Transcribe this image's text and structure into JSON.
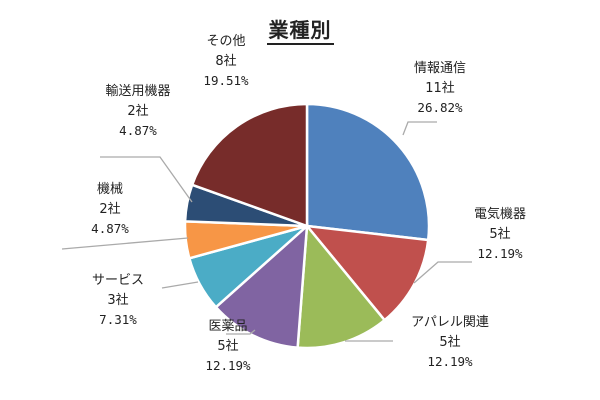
{
  "chart_data": {
    "type": "pie",
    "title": "業種別",
    "slices": [
      {
        "name": "情報通信",
        "count_label": "11社",
        "percent_label": "26.82%",
        "value": 26.82,
        "color": "#4f81bd"
      },
      {
        "name": "電気機器",
        "count_label": "5社",
        "percent_label": "12.19%",
        "value": 12.19,
        "color": "#c0504d"
      },
      {
        "name": "アパレル関連",
        "count_label": "5社",
        "percent_label": "12.19%",
        "value": 12.19,
        "color": "#9bbb59"
      },
      {
        "name": "医薬品",
        "count_label": "5社",
        "percent_label": "12.19%",
        "value": 12.19,
        "color": "#8064a2"
      },
      {
        "name": "サービス",
        "count_label": "3社",
        "percent_label": "7.31%",
        "value": 7.31,
        "color": "#4bacc6"
      },
      {
        "name": "機械",
        "count_label": "2社",
        "percent_label": "4.87%",
        "value": 4.87,
        "color": "#f79646"
      },
      {
        "name": "輸送用機器",
        "count_label": "2社",
        "percent_label": "4.87%",
        "value": 4.87,
        "color": "#2c4d75"
      },
      {
        "name": "その他",
        "count_label": "8社",
        "percent_label": "19.51%",
        "value": 19.51,
        "color": "#772c2a"
      }
    ],
    "start_angle": "12 o'clock",
    "direction": "clockwise",
    "legend": "none",
    "leader_line_color": "#aaaaaa"
  }
}
